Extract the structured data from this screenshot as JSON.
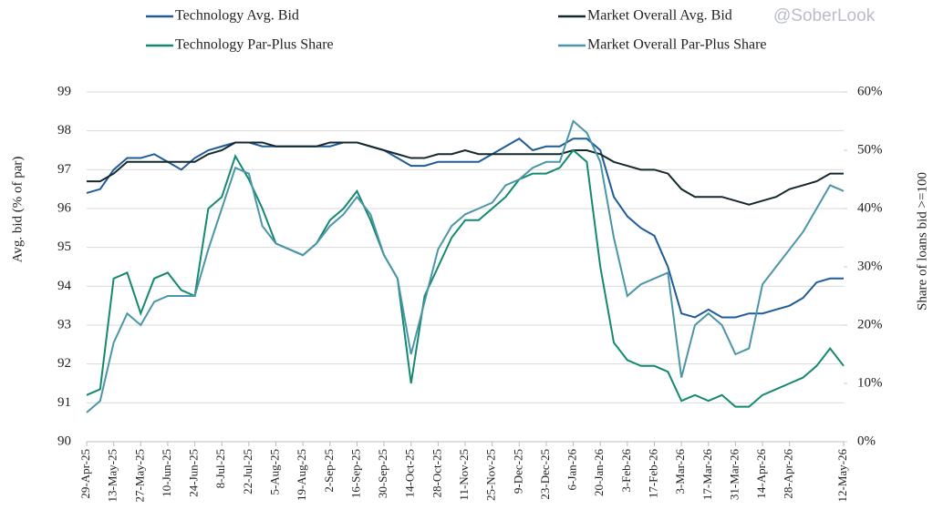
{
  "chart_data": {
    "type": "line",
    "watermark": "@SoberLook",
    "y_label": "Avg. bid (% of par)",
    "y2_label": "Share of loans bid >=100",
    "categories": [
      "29-Apr-25",
      null,
      "13-May-25",
      null,
      "27-May-25",
      null,
      "10-Jun-25",
      null,
      "24-Jun-25",
      null,
      "8-Jul-25",
      null,
      "22-Jul-25",
      null,
      "5-Aug-25",
      null,
      "19-Aug-25",
      null,
      "2-Sep-25",
      null,
      "16-Sep-25",
      null,
      "30-Sep-25",
      null,
      "14-Oct-25",
      null,
      "28-Oct-25",
      null,
      "11-Nov-25",
      null,
      "25-Nov-25",
      null,
      "9-Dec-25",
      null,
      "23-Dec-25",
      null,
      "6-Jan-26",
      null,
      "20-Jan-26",
      null,
      "3-Feb-26",
      null,
      "17-Feb-26",
      null,
      "3-Mar-26",
      null,
      "17-Mar-26",
      null,
      "31-Mar-26",
      null,
      "14-Apr-26",
      null,
      "28-Apr-26",
      null,
      null,
      null,
      "12-May-26"
    ],
    "ylim": [
      90,
      99
    ],
    "yticks": [
      90,
      91,
      92,
      93,
      94,
      95,
      96,
      97,
      98,
      99
    ],
    "y2lim": [
      0,
      60
    ],
    "y2ticks": [
      {
        "value": 0,
        "label": "0%"
      },
      {
        "value": 10,
        "label": "10%"
      },
      {
        "value": 20,
        "label": "20%"
      },
      {
        "value": 30,
        "label": "30%"
      },
      {
        "value": 40,
        "label": "40%"
      },
      {
        "value": 50,
        "label": "50%"
      },
      {
        "value": 60,
        "label": "60%"
      }
    ],
    "grid": true,
    "series": [
      {
        "name": "Technology Avg. Bid",
        "color": "#1f5b99",
        "values": [
          96.4,
          96.5,
          97.0,
          97.3,
          97.3,
          97.4,
          97.2,
          97.0,
          97.3,
          97.5,
          97.6,
          97.7,
          97.7,
          97.6,
          97.6,
          97.6,
          97.6,
          97.6,
          97.6,
          97.7,
          97.7,
          97.6,
          97.5,
          97.3,
          97.1,
          97.1,
          97.2,
          97.2,
          97.2,
          97.2,
          97.4,
          97.6,
          97.8,
          97.5,
          97.6,
          97.6,
          97.8,
          97.8,
          97.5,
          96.3,
          95.8,
          95.5,
          95.3,
          94.5,
          93.3,
          93.2,
          93.4,
          93.2,
          93.2,
          93.3,
          93.3,
          93.4,
          93.5,
          93.7,
          94.1,
          94.2,
          94.2
        ]
      },
      {
        "name": "Market Overall Avg. Bid",
        "color": "#14292b",
        "values": [
          96.7,
          96.7,
          96.9,
          97.2,
          97.2,
          97.2,
          97.2,
          97.2,
          97.2,
          97.4,
          97.5,
          97.7,
          97.7,
          97.7,
          97.6,
          97.6,
          97.6,
          97.6,
          97.7,
          97.7,
          97.7,
          97.6,
          97.5,
          97.4,
          97.3,
          97.3,
          97.4,
          97.4,
          97.5,
          97.4,
          97.4,
          97.4,
          97.4,
          97.4,
          97.4,
          97.4,
          97.5,
          97.5,
          97.4,
          97.2,
          97.1,
          97.0,
          97.0,
          96.9,
          96.5,
          96.3,
          96.3,
          96.3,
          96.2,
          96.1,
          96.2,
          96.3,
          96.5,
          96.6,
          96.7,
          96.9,
          96.9
        ]
      },
      {
        "name": "Technology Par-Plus Share",
        "color": "#13896f",
        "axis": "y2",
        "values": [
          8,
          9,
          28,
          29,
          22,
          28,
          29,
          26,
          25,
          40,
          42,
          49,
          45,
          40,
          34,
          33,
          32,
          34,
          38,
          40,
          43,
          38,
          32,
          28,
          10,
          25,
          30,
          35,
          38,
          38,
          40,
          42,
          45,
          46,
          46,
          47,
          50,
          48,
          30,
          17,
          14,
          13,
          13,
          12,
          7,
          8,
          7,
          8,
          6,
          6,
          8,
          9,
          10,
          11,
          13,
          16,
          13
        ]
      },
      {
        "name": "Market Overall Par-Plus Share",
        "color": "#4a96a8",
        "axis": "y2",
        "values": [
          5,
          7,
          17,
          22,
          20,
          24,
          25,
          25,
          25,
          33,
          40,
          47,
          46,
          37,
          34,
          33,
          32,
          34,
          37,
          39,
          42,
          39,
          32,
          28,
          15,
          24,
          33,
          37,
          39,
          40,
          41,
          44,
          45,
          47,
          48,
          48,
          55,
          53,
          48,
          35,
          25,
          27,
          28,
          29,
          11,
          20,
          22,
          20,
          15,
          16,
          27,
          30,
          33,
          36,
          40,
          44,
          43
        ]
      }
    ]
  }
}
